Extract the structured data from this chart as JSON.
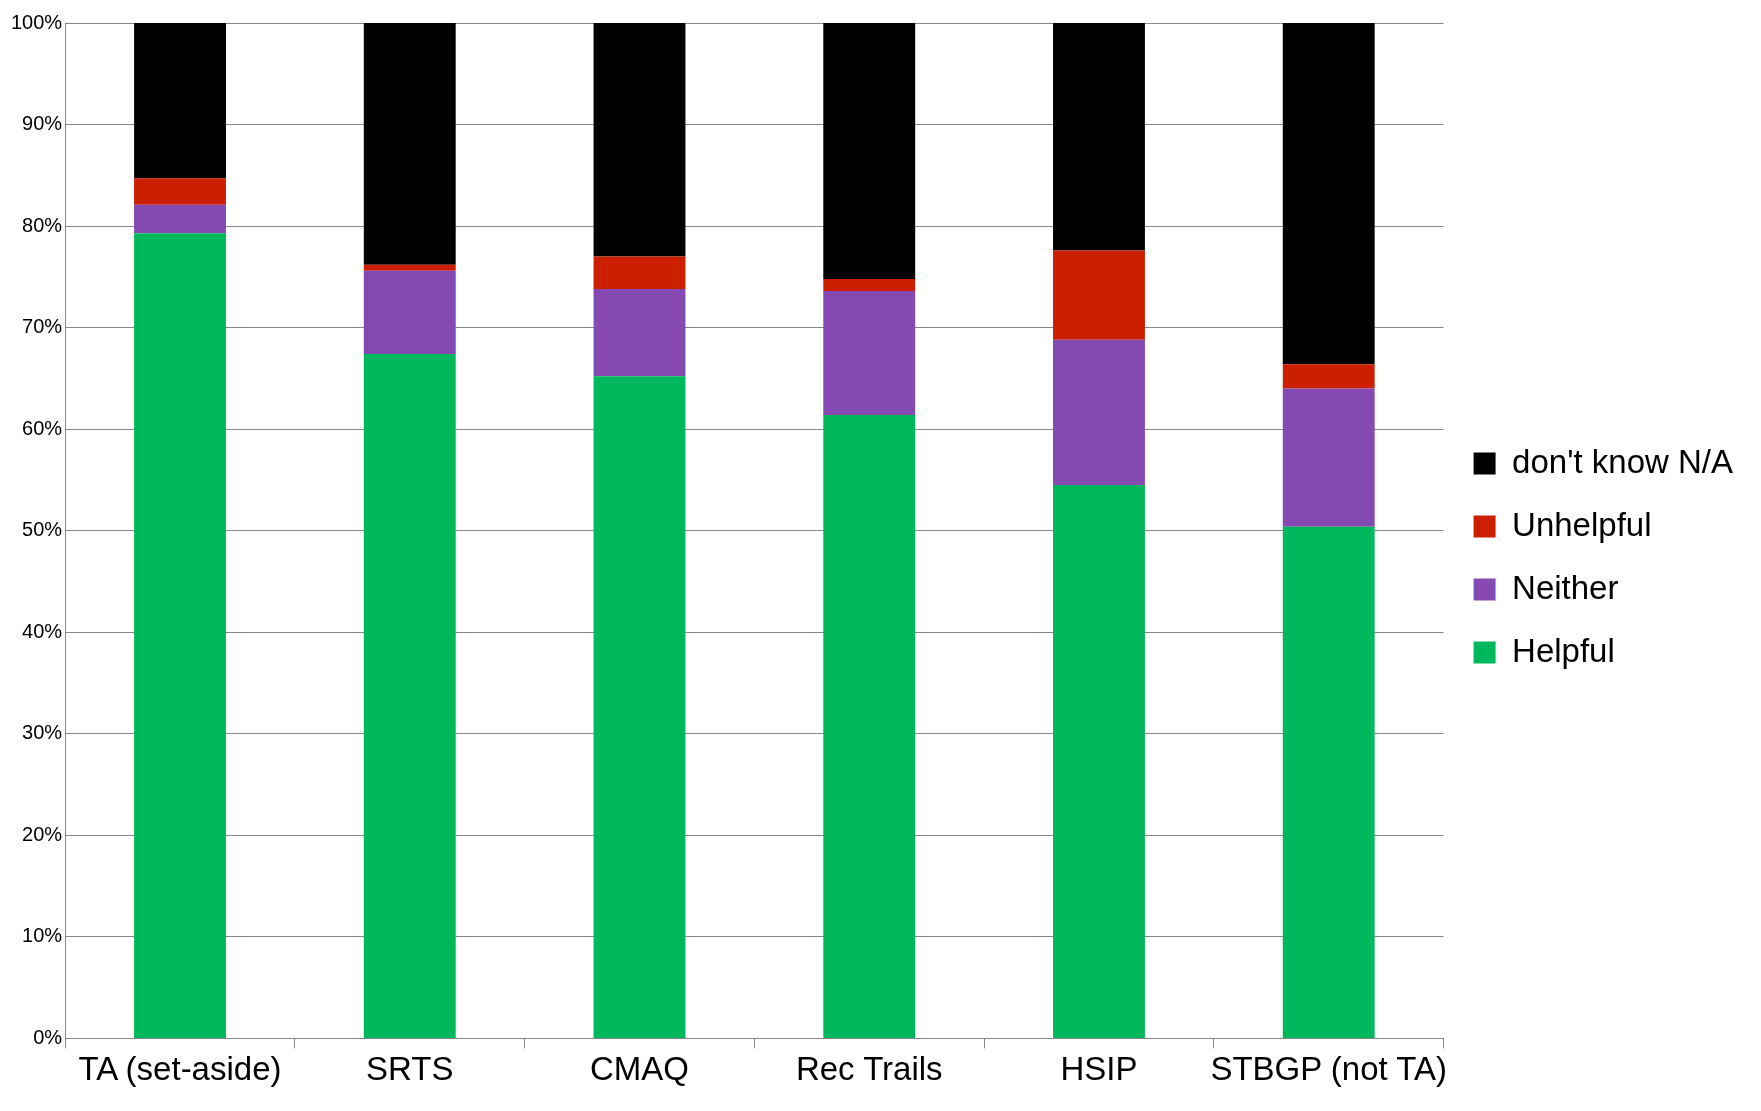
{
  "chart_data": {
    "type": "bar",
    "stacked": true,
    "categories": [
      "TA (set-aside)",
      "SRTS",
      "CMAQ",
      "Rec Trails",
      "HSIP",
      "STBGP (not TA)"
    ],
    "series": [
      {
        "name": "Helpful",
        "color": "#00b85c",
        "values": [
          79.3,
          67.4,
          65.2,
          61.4,
          54.5,
          50.4
        ]
      },
      {
        "name": "Neither",
        "color": "#8549b2",
        "values": [
          2.8,
          8.2,
          8.6,
          12.2,
          14.3,
          13.6
        ]
      },
      {
        "name": "Unhelpful",
        "color": "#cc1f00",
        "values": [
          2.6,
          0.6,
          3.2,
          1.2,
          8.8,
          2.4
        ]
      },
      {
        "name": "don't know N/A",
        "color": "#000000",
        "values": [
          15.3,
          23.8,
          23.0,
          25.2,
          22.4,
          33.6
        ]
      }
    ],
    "ylim": [
      0,
      100
    ],
    "yticks": [
      {
        "value": 0,
        "label": "0%"
      },
      {
        "value": 10,
        "label": "10%"
      },
      {
        "value": 20,
        "label": "20%"
      },
      {
        "value": 30,
        "label": "30%"
      },
      {
        "value": 40,
        "label": "40%"
      },
      {
        "value": 50,
        "label": "50%"
      },
      {
        "value": 60,
        "label": "60%"
      },
      {
        "value": 70,
        "label": "70%"
      },
      {
        "value": 80,
        "label": "80%"
      },
      {
        "value": 90,
        "label": "90%"
      },
      {
        "value": 100,
        "label": "100%"
      }
    ],
    "grid": "y",
    "legend": "right"
  }
}
